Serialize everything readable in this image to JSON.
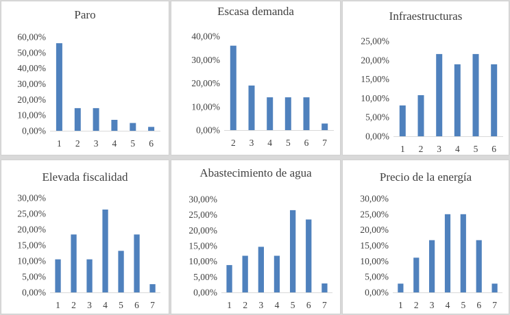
{
  "chart_data": [
    {
      "type": "bar",
      "title": "Paro",
      "categories": [
        "1",
        "2",
        "3",
        "4",
        "5",
        "6"
      ],
      "values": [
        0.56,
        0.145,
        0.145,
        0.07,
        0.05,
        0.025
      ],
      "ylim": [
        0,
        0.6
      ],
      "yticks": [
        0,
        0.1,
        0.2,
        0.3,
        0.4,
        0.5,
        0.6
      ],
      "ytick_labels": [
        "0,00%",
        "10,00%",
        "20,00%",
        "30,00%",
        "40,00%",
        "50,00%",
        "60,00%"
      ],
      "xlabel": "",
      "ylabel": "",
      "grid": false,
      "color": "#4f81bd"
    },
    {
      "type": "bar",
      "title": "Escasa demanda",
      "categories": [
        "2",
        "3",
        "4",
        "5",
        "6",
        "7"
      ],
      "values": [
        0.36,
        0.19,
        0.14,
        0.14,
        0.14,
        0.028
      ],
      "ylim": [
        0,
        0.4
      ],
      "yticks": [
        0,
        0.1,
        0.2,
        0.3,
        0.4
      ],
      "ytick_labels": [
        "0,00%",
        "10,00%",
        "20,00%",
        "30,00%",
        "40,00%"
      ],
      "xlabel": "",
      "ylabel": "",
      "grid": false,
      "color": "#4f81bd"
    },
    {
      "type": "bar",
      "title": "Infraestructuras",
      "categories": [
        "1",
        "2",
        "3",
        "4",
        "5",
        "6"
      ],
      "values": [
        0.081,
        0.108,
        0.216,
        0.189,
        0.216,
        0.189
      ],
      "ylim": [
        0,
        0.25
      ],
      "yticks": [
        0,
        0.05,
        0.1,
        0.15,
        0.2,
        0.25
      ],
      "ytick_labels": [
        "0,00%",
        "5,00%",
        "10,00%",
        "15,00%",
        "20,00%",
        "25,00%"
      ],
      "xlabel": "",
      "ylabel": "",
      "grid": false,
      "color": "#4f81bd"
    },
    {
      "type": "bar",
      "title": "Elevada fiscalidad",
      "categories": [
        "1",
        "2",
        "3",
        "4",
        "5",
        "6",
        "7"
      ],
      "values": [
        0.105,
        0.184,
        0.105,
        0.263,
        0.132,
        0.184,
        0.026
      ],
      "ylim": [
        0,
        0.3
      ],
      "yticks": [
        0,
        0.05,
        0.1,
        0.15,
        0.2,
        0.25,
        0.3
      ],
      "ytick_labels": [
        "0,00%",
        "5,00%",
        "10,00%",
        "15,00%",
        "20,00%",
        "25,00%",
        "30,00%"
      ],
      "xlabel": "",
      "ylabel": "",
      "grid": false,
      "color": "#4f81bd"
    },
    {
      "type": "bar",
      "title": "Abastecimiento de agua",
      "categories": [
        "1",
        "2",
        "3",
        "4",
        "5",
        "6",
        "7"
      ],
      "values": [
        0.088,
        0.118,
        0.147,
        0.118,
        0.265,
        0.235,
        0.029
      ],
      "ylim": [
        0,
        0.3
      ],
      "yticks": [
        0,
        0.05,
        0.1,
        0.15,
        0.2,
        0.25,
        0.3
      ],
      "ytick_labels": [
        "0,00%",
        "5,00%",
        "10,00%",
        "15,00%",
        "20,00%",
        "25,00%",
        "30,00%"
      ],
      "xlabel": "",
      "ylabel": "",
      "grid": false,
      "color": "#4f81bd"
    },
    {
      "type": "bar",
      "title": "Precio de la energía",
      "categories": [
        "1",
        "2",
        "3",
        "4",
        "5",
        "6",
        "7"
      ],
      "values": [
        0.028,
        0.111,
        0.167,
        0.25,
        0.25,
        0.167,
        0.028
      ],
      "ylim": [
        0,
        0.3
      ],
      "yticks": [
        0,
        0.05,
        0.1,
        0.15,
        0.2,
        0.25,
        0.3
      ],
      "ytick_labels": [
        "0,00%",
        "5,00%",
        "10,00%",
        "15,00%",
        "20,00%",
        "25,00%",
        "30,00%"
      ],
      "xlabel": "",
      "ylabel": "",
      "grid": false,
      "color": "#4f81bd"
    }
  ]
}
